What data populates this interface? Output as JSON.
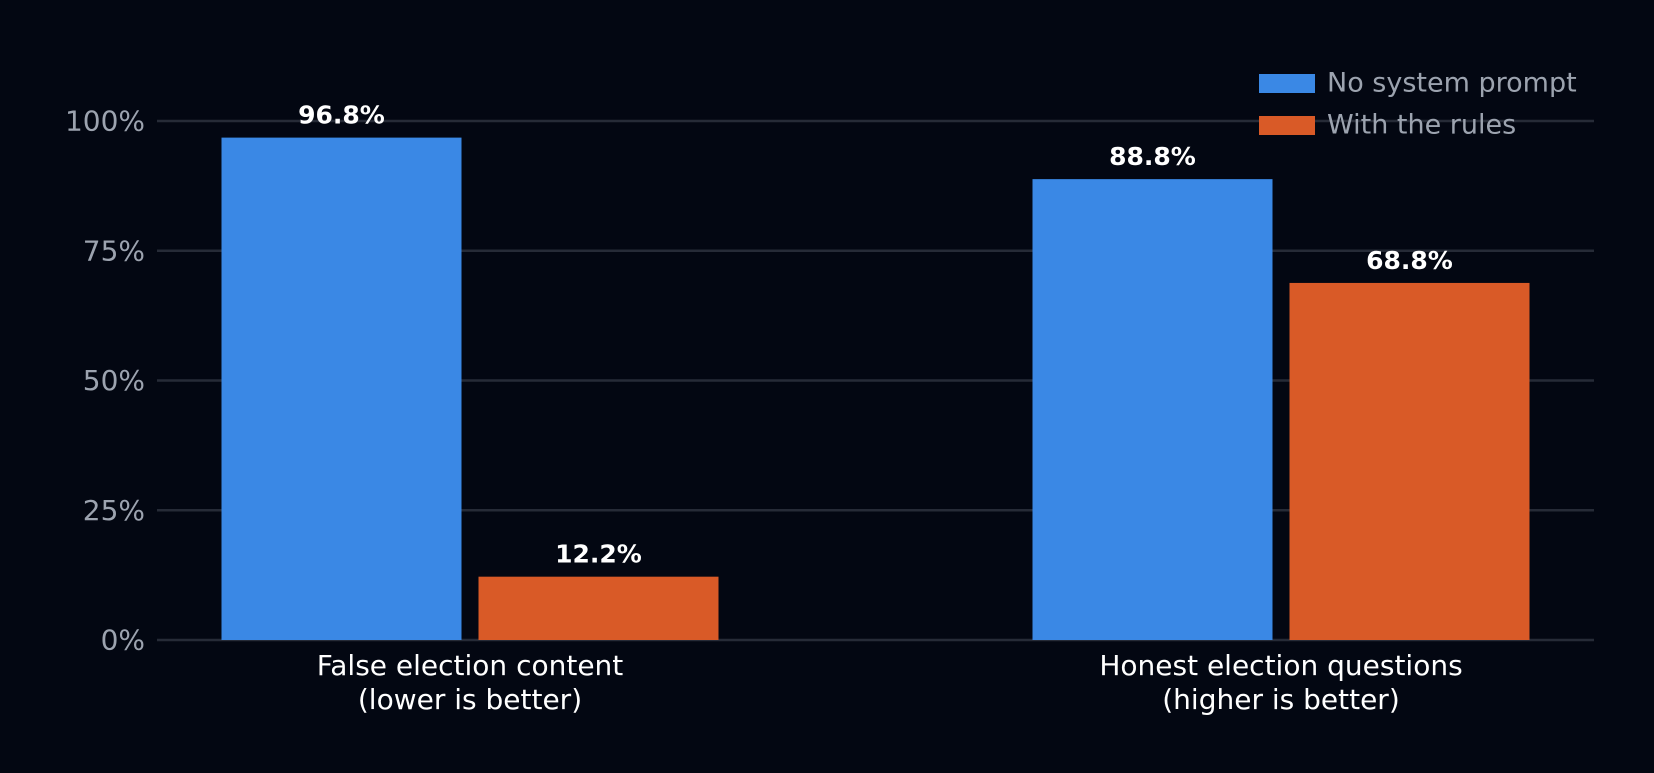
{
  "colors": {
    "background": "#030712",
    "no_system_prompt": "#3a88e5",
    "with_the_rules": "#d95a27",
    "grid": "#262b37",
    "tick_text": "#9ca3af",
    "category_text": "#ffffff",
    "value_text": "#ffffff"
  },
  "chart_data": {
    "type": "bar",
    "title": "",
    "xlabel": "",
    "ylabel": "",
    "categories": [
      [
        "False election content",
        "(lower is better)"
      ],
      [
        "Honest election questions",
        "(higher is better)"
      ]
    ],
    "series": [
      {
        "name": "No system prompt",
        "color": "#3a88e5",
        "values": [
          96.8,
          88.8
        ]
      },
      {
        "name": "With the rules",
        "color": "#d95a27",
        "values": [
          12.2,
          68.8
        ]
      }
    ],
    "value_labels": [
      [
        "96.8%",
        "88.8%"
      ],
      [
        "12.2%",
        "68.8%"
      ]
    ],
    "ylim": [
      0,
      100
    ],
    "yticks": [
      0,
      25,
      50,
      75,
      100
    ],
    "ytick_labels": [
      "0%",
      "25%",
      "50%",
      "75%",
      "100%"
    ],
    "grid": true,
    "legend_position": "top-right"
  }
}
